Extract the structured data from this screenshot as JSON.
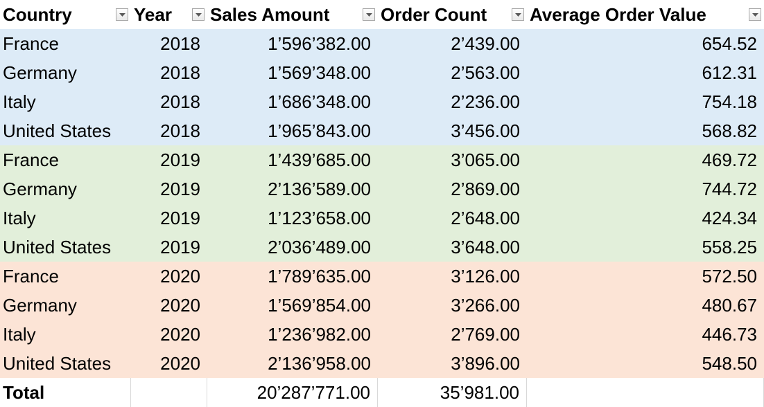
{
  "colors": {
    "group_2018": "#ddebf7",
    "group_2019": "#e2efda",
    "group_2020": "#fce4d6",
    "filter_border": "#a6a6a6",
    "filter_arrow": "#595959"
  },
  "table": {
    "headers": [
      "Country",
      "Year",
      "Sales Amount",
      "Order Count",
      "Average Order Value"
    ],
    "rows": [
      {
        "country": "France",
        "year": "2018",
        "sales": "1’596’382.00",
        "orders": "2’439.00",
        "avg": "654.52",
        "group": "group_2018"
      },
      {
        "country": "Germany",
        "year": "2018",
        "sales": "1’569’348.00",
        "orders": "2’563.00",
        "avg": "612.31",
        "group": "group_2018"
      },
      {
        "country": "Italy",
        "year": "2018",
        "sales": "1’686’348.00",
        "orders": "2’236.00",
        "avg": "754.18",
        "group": "group_2018"
      },
      {
        "country": "United States",
        "year": "2018",
        "sales": "1’965’843.00",
        "orders": "3’456.00",
        "avg": "568.82",
        "group": "group_2018"
      },
      {
        "country": "France",
        "year": "2019",
        "sales": "1’439’685.00",
        "orders": "3’065.00",
        "avg": "469.72",
        "group": "group_2019"
      },
      {
        "country": "Germany",
        "year": "2019",
        "sales": "2’136’589.00",
        "orders": "2’869.00",
        "avg": "744.72",
        "group": "group_2019"
      },
      {
        "country": "Italy",
        "year": "2019",
        "sales": "1’123’658.00",
        "orders": "2’648.00",
        "avg": "424.34",
        "group": "group_2019"
      },
      {
        "country": "United States",
        "year": "2019",
        "sales": "2’036’489.00",
        "orders": "3’648.00",
        "avg": "558.25",
        "group": "group_2019"
      },
      {
        "country": "France",
        "year": "2020",
        "sales": "1’789’635.00",
        "orders": "3’126.00",
        "avg": "572.50",
        "group": "group_2020"
      },
      {
        "country": "Germany",
        "year": "2020",
        "sales": "1’569’854.00",
        "orders": "3’266.00",
        "avg": "480.67",
        "group": "group_2020"
      },
      {
        "country": "Italy",
        "year": "2020",
        "sales": "1’236’982.00",
        "orders": "2’769.00",
        "avg": "446.73",
        "group": "group_2020"
      },
      {
        "country": "United States",
        "year": "2020",
        "sales": "2’136’958.00",
        "orders": "3’896.00",
        "avg": "548.50",
        "group": "group_2020"
      }
    ],
    "total": {
      "label": "Total",
      "sales": "20’287’771.00",
      "orders": "35’981.00"
    }
  }
}
